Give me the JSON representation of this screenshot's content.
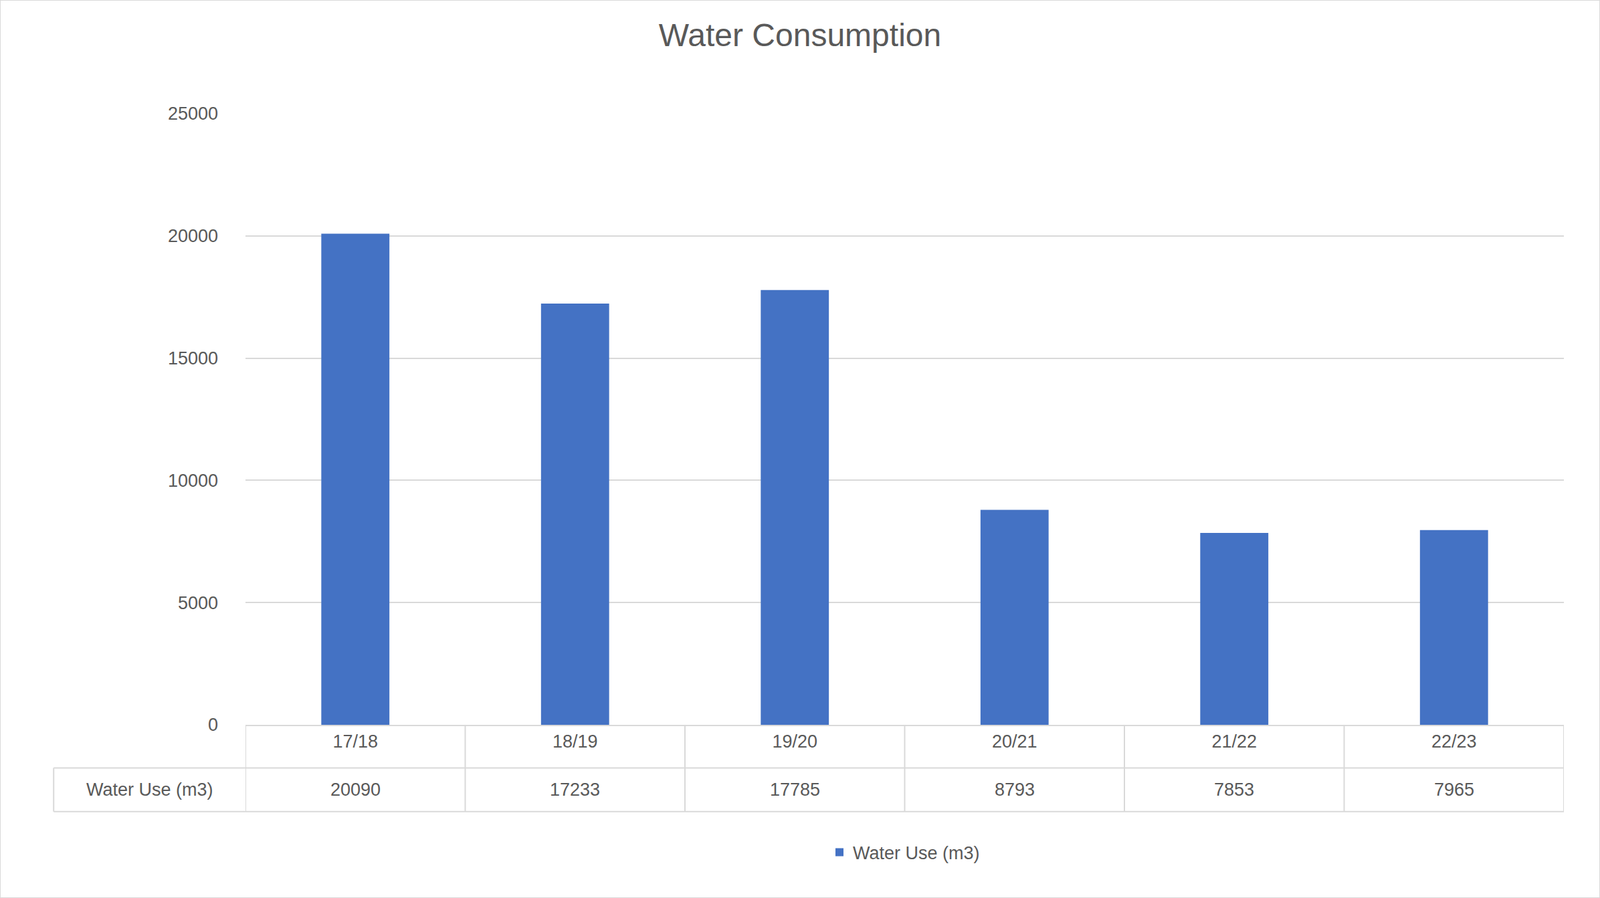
{
  "chart_data": {
    "type": "bar",
    "title": "Water Consumption",
    "categories": [
      "17/18",
      "18/19",
      "19/20",
      "20/21",
      "21/22",
      "22/23"
    ],
    "series": [
      {
        "name": "Water Use (m3)",
        "color": "#4472c4",
        "values": [
          20090,
          17233,
          17785,
          8793,
          7853,
          7965
        ]
      }
    ],
    "ylim": [
      0,
      25000
    ],
    "yticks": [
      0,
      5000,
      10000,
      15000,
      20000,
      25000
    ],
    "grid": true,
    "legend": "bottom",
    "data_labels": true
  }
}
